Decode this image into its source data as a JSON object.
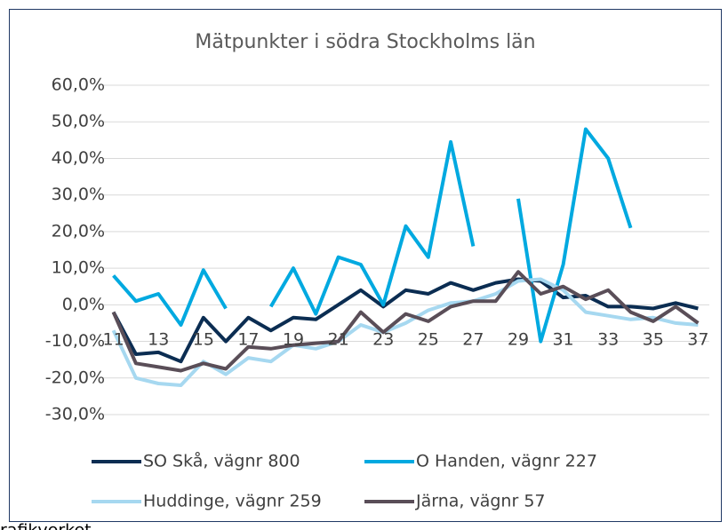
{
  "chart_data": {
    "type": "line",
    "title": "Mätpunkter i södra Stockholms län",
    "categories": [
      "11",
      null,
      "13",
      null,
      "15",
      null,
      "17",
      null,
      "19",
      null,
      "21",
      null,
      "23",
      null,
      "25",
      null,
      "27",
      null,
      "29",
      null,
      "31",
      null,
      "33",
      null,
      "35",
      null,
      "37"
    ],
    "series": [
      {
        "name": "SO Skå, vägnr 800",
        "color": "#0b2d52",
        "values": [
          -2,
          -13.5,
          -13,
          -15.5,
          -3.5,
          -10,
          -3.5,
          -7,
          -3.5,
          -4,
          0,
          4,
          -0.5,
          4,
          3,
          6,
          4,
          6,
          7,
          6.5,
          2,
          2.5,
          -0.5,
          -0.5,
          -1,
          0.5,
          -1
        ]
      },
      {
        "name": "O Handen, vägnr 227",
        "color": "#00a9e0",
        "values": [
          8,
          1,
          3,
          -5.5,
          9.5,
          -1,
          null,
          -0.5,
          10,
          -2.5,
          13,
          11,
          0,
          21.5,
          13,
          44.5,
          16,
          null,
          29,
          -10,
          11,
          48,
          40,
          21,
          null,
          null,
          null
        ]
      },
      {
        "name": "Huddinge, vägnr 259",
        "color": "#a6d8f0",
        "values": [
          -7,
          -20,
          -21.5,
          -22,
          -15.5,
          -19,
          -14.5,
          -15.5,
          -11,
          -12,
          -10,
          -5.5,
          -7.5,
          -5,
          -1.5,
          0.5,
          1,
          3,
          6.5,
          7,
          4,
          -2,
          -3,
          -4,
          -3.5,
          -5,
          -5.5
        ]
      },
      {
        "name": "Järna, vägnr 57",
        "color": "#5a4e58",
        "values": [
          -2,
          -16,
          -17,
          -18,
          -16,
          -17.5,
          -11.5,
          -12,
          -11,
          -10.5,
          -10,
          -2,
          -7.5,
          -2.5,
          -4.5,
          -0.5,
          1,
          1,
          9,
          3,
          5,
          1.5,
          4,
          -2,
          -4.5,
          -0.5,
          -5
        ]
      }
    ],
    "ylim": [
      -30,
      60
    ],
    "yticks": [
      {
        "value": -30,
        "label": "-30,0%"
      },
      {
        "value": -20,
        "label": "-20,0%"
      },
      {
        "value": -10,
        "label": "-10,0%"
      },
      {
        "value": 0,
        "label": "0,0%"
      },
      {
        "value": 10,
        "label": "10,0%"
      },
      {
        "value": 20,
        "label": "20,0%"
      },
      {
        "value": 30,
        "label": "30,0%"
      },
      {
        "value": 40,
        "label": "40,0%"
      },
      {
        "value": 50,
        "label": "50,0%"
      },
      {
        "value": 60,
        "label": "60,0%"
      }
    ],
    "grid": true,
    "legend": "bottom",
    "source": "rafikverket"
  }
}
